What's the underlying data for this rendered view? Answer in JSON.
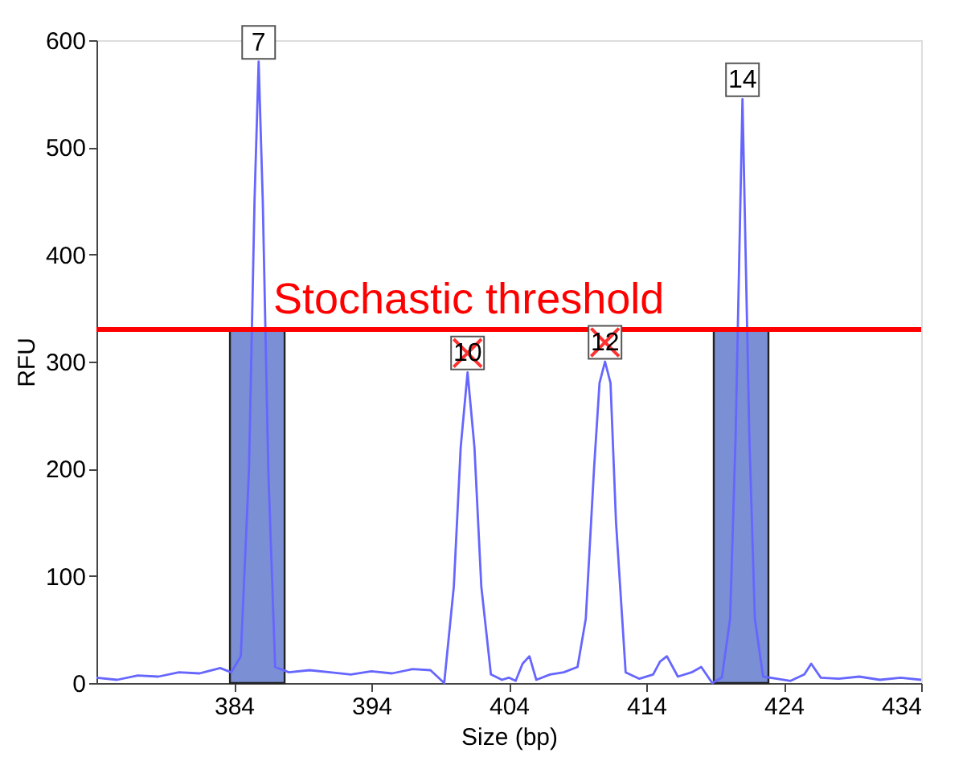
{
  "chart_data": {
    "type": "line",
    "xlabel": "Size (bp)",
    "ylabel": "RFU",
    "xlim": [
      374,
      434
    ],
    "xticks": [
      384,
      394,
      404,
      414,
      424,
      434
    ],
    "ylim": [
      0,
      600
    ],
    "yticks": [
      0,
      100,
      200,
      300,
      400,
      500,
      600
    ],
    "grid": false,
    "marker": "none",
    "line_style": "solid",
    "series": [
      {
        "type": "bar",
        "color": "#7b8fd4",
        "x": [
          385.7,
          420.9
        ],
        "values": [
          330,
          330
        ]
      },
      {
        "color": "#6666ff",
        "x": [
          374,
          375.5,
          377,
          378.5,
          380,
          381.5,
          383,
          383.8,
          384.5,
          385.1,
          385.5,
          385.8,
          386.1,
          386.5,
          387,
          388,
          389.5,
          391,
          392.5,
          394,
          395.5,
          397,
          398.3,
          399.3,
          400,
          400.5,
          401,
          401.5,
          402,
          402.7,
          403.5,
          404,
          404.5,
          405,
          405.5,
          406,
          407,
          408,
          409,
          409.6,
          410.2,
          410.6,
          411,
          411.4,
          411.8,
          412.5,
          413.5,
          414.5,
          415,
          415.5,
          416.3,
          417.3,
          418,
          418.8,
          419.5,
          420.1,
          420.5,
          421,
          421.5,
          421.9,
          422.5,
          423.5,
          424.5,
          425.5,
          426,
          426.7,
          428,
          429.5,
          431,
          432.5,
          434
        ],
        "values": [
          5,
          3,
          7,
          6,
          10,
          9,
          14,
          10,
          25,
          200,
          450,
          580,
          450,
          200,
          15,
          10,
          12,
          10,
          8,
          11,
          9,
          13,
          12,
          0,
          90,
          220,
          290,
          220,
          90,
          8,
          3,
          5,
          2,
          18,
          25,
          3,
          8,
          10,
          15,
          60,
          200,
          280,
          300,
          280,
          150,
          10,
          4,
          8,
          20,
          25,
          6,
          10,
          15,
          0,
          5,
          60,
          230,
          545,
          230,
          60,
          6,
          4,
          2,
          8,
          18,
          5,
          4,
          6,
          3,
          5,
          3
        ]
      }
    ],
    "ref_lines": [
      {
        "axis": "y",
        "value": 330,
        "label": "Stochastic threshold",
        "color": "#ff0000",
        "line_style": "solid"
      }
    ],
    "annotations": [
      {
        "text": "7",
        "x": 385.8,
        "y": 580
      },
      {
        "text": "10",
        "x": 401,
        "y": 290
      },
      {
        "text": "12",
        "x": 411,
        "y": 300
      },
      {
        "text": "14",
        "x": 421,
        "y": 545
      }
    ]
  }
}
